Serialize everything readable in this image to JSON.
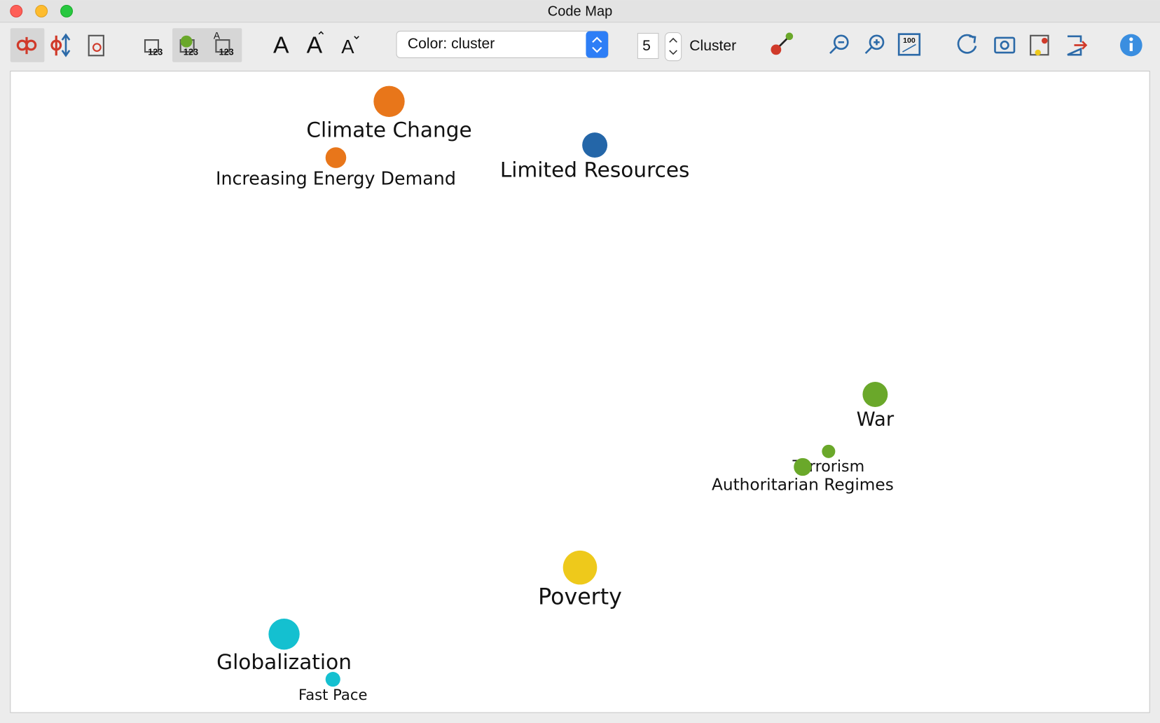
{
  "window": {
    "title": "Code Map"
  },
  "toolbar": {
    "icon_number_labels": [
      "123",
      "123",
      "123"
    ],
    "icon_letter_label": "A",
    "font_buttons": [
      "A",
      "A",
      "A"
    ],
    "color_select": "Color: cluster",
    "cluster_count": "5",
    "cluster_label": "Cluster",
    "fit_label": "100"
  },
  "map": {
    "nodes": [
      {
        "label": "Climate Change",
        "color": "#e8761a"
      },
      {
        "label": "Increasing Energy Demand",
        "color": "#e8761a"
      },
      {
        "label": "Limited Resources",
        "color": "#2466a8"
      },
      {
        "label": "War",
        "color": "#6aa82a"
      },
      {
        "label": "Terrorism",
        "color": "#6aa82a"
      },
      {
        "label": "Authoritarian Regimes",
        "color": "#6aa82a"
      },
      {
        "label": "Poverty",
        "color": "#eec91b"
      },
      {
        "label": "Globalization",
        "color": "#14c0d0"
      },
      {
        "label": "Fast Pace",
        "color": "#14c0d0"
      }
    ]
  }
}
